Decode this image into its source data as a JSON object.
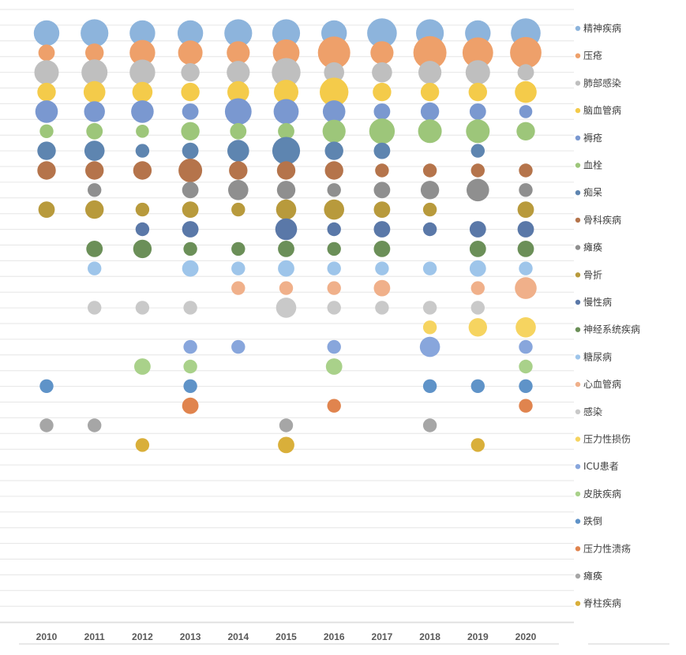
{
  "chart_data": {
    "type": "bubble",
    "x": [
      "2010",
      "2011",
      "2012",
      "2013",
      "2014",
      "2015",
      "2016",
      "2017",
      "2018",
      "2019",
      "2020"
    ],
    "grid": true,
    "legend_position": "right",
    "series": [
      {
        "name": "精神疾病",
        "color": "#8db4dc",
        "values": [
          4,
          5,
          4,
          4,
          5,
          5,
          4,
          6,
          5,
          4,
          6
        ]
      },
      {
        "name": "压疮",
        "color": "#eea06a",
        "values": [
          1,
          1.5,
          4,
          3.5,
          3,
          4.5,
          7.5,
          3,
          8,
          6.5,
          7
        ]
      },
      {
        "name": "肺部感染",
        "color": "#bfbfbf",
        "values": [
          3.5,
          4.2,
          4,
          1.5,
          3,
          5.5,
          2,
          2,
          3,
          3.5,
          1
        ]
      },
      {
        "name": "脑血管病",
        "color": "#f4cb4a",
        "values": [
          1.5,
          2.5,
          2,
          1.5,
          2.5,
          3.5,
          5.5,
          1.5,
          1.5,
          1.5,
          2.5
        ]
      },
      {
        "name": "褥疮",
        "color": "#7a98d0",
        "values": [
          2.8,
          2.2,
          2.8,
          1,
          4.5,
          3.8,
          2.8,
          1,
          1.5,
          1,
          0.4
        ]
      },
      {
        "name": "血栓",
        "color": "#9dc67a",
        "values": [
          0.5,
          1,
          0.4,
          1.5,
          1,
          1,
          3,
          4,
          3.2,
          3.2,
          1.5
        ]
      },
      {
        "name": "痴呆",
        "color": "#5e85b0",
        "values": [
          1.5,
          2,
          0.5,
          1,
          2.5,
          5,
          1.5,
          1,
          null,
          0.5,
          null
        ]
      },
      {
        "name": "骨科疾病",
        "color": "#b5744b",
        "values": [
          1.5,
          1.5,
          1.5,
          3.2,
          1.5,
          1.5,
          1.5,
          0.5,
          0.5,
          0.5,
          0.5
        ]
      },
      {
        "name": "瘫痪",
        "color": "#8f8f8f",
        "values": [
          null,
          0.5,
          null,
          1,
          2,
          1.5,
          0.5,
          1,
          1.5,
          2.8,
          0.5
        ]
      },
      {
        "name": "骨折",
        "color": "#b89a3c",
        "values": [
          1,
          1.5,
          0.5,
          1,
          0.5,
          2,
          2,
          1,
          0.5,
          null,
          1
        ]
      },
      {
        "name": "慢性病",
        "color": "#5a78a8",
        "values": [
          null,
          null,
          0.5,
          1,
          null,
          2.5,
          0.5,
          1,
          0.5,
          1,
          1
        ]
      },
      {
        "name": "神经系统疾病",
        "color": "#6b8f58",
        "values": [
          null,
          1,
          1.5,
          0.5,
          0.5,
          1,
          0.5,
          1,
          null,
          1,
          1
        ]
      },
      {
        "name": "糖尿病",
        "color": "#9ec5ea",
        "values": [
          null,
          0.5,
          null,
          1,
          0.5,
          1,
          0.5,
          0.5,
          0.5,
          1,
          0.5
        ]
      },
      {
        "name": "心血管病",
        "color": "#f0b08a",
        "values": [
          null,
          null,
          null,
          null,
          0.5,
          0.5,
          0.5,
          1,
          null,
          0.5,
          2.5
        ]
      },
      {
        "name": "感染",
        "color": "#c9c9c9",
        "values": [
          null,
          0.5,
          0.5,
          0.5,
          null,
          2,
          0.5,
          0.5,
          0.5,
          0.5,
          null
        ]
      },
      {
        "name": "压力性损伤",
        "color": "#f6d460",
        "values": [
          null,
          null,
          null,
          null,
          null,
          null,
          null,
          null,
          0.5,
          1.5,
          2
        ]
      },
      {
        "name": "ICU患者",
        "color": "#88a6dc",
        "values": [
          null,
          null,
          null,
          0.5,
          0.5,
          null,
          0.5,
          null,
          2,
          null,
          0.5
        ]
      },
      {
        "name": "皮肤疾病",
        "color": "#a9d18a",
        "values": [
          null,
          null,
          1,
          0.5,
          null,
          null,
          1,
          null,
          null,
          null,
          0.5
        ]
      },
      {
        "name": "跌倒",
        "color": "#5f93c8",
        "values": [
          0.5,
          null,
          null,
          0.5,
          null,
          null,
          null,
          null,
          0.5,
          0.5,
          0.5
        ]
      },
      {
        "name": "压力性溃疡",
        "color": "#e0844e",
        "values": [
          null,
          null,
          null,
          1,
          null,
          null,
          0.5,
          null,
          null,
          null,
          0.5
        ]
      },
      {
        "name": "瘫痪",
        "color": "#a6a6a6",
        "values": [
          0.5,
          0.5,
          null,
          null,
          null,
          0.5,
          null,
          null,
          0.5,
          null,
          null
        ]
      },
      {
        "name": "脊柱疾病",
        "color": "#d9af3a",
        "values": [
          null,
          null,
          0.5,
          null,
          null,
          1,
          null,
          null,
          null,
          0.5,
          null
        ]
      }
    ]
  }
}
